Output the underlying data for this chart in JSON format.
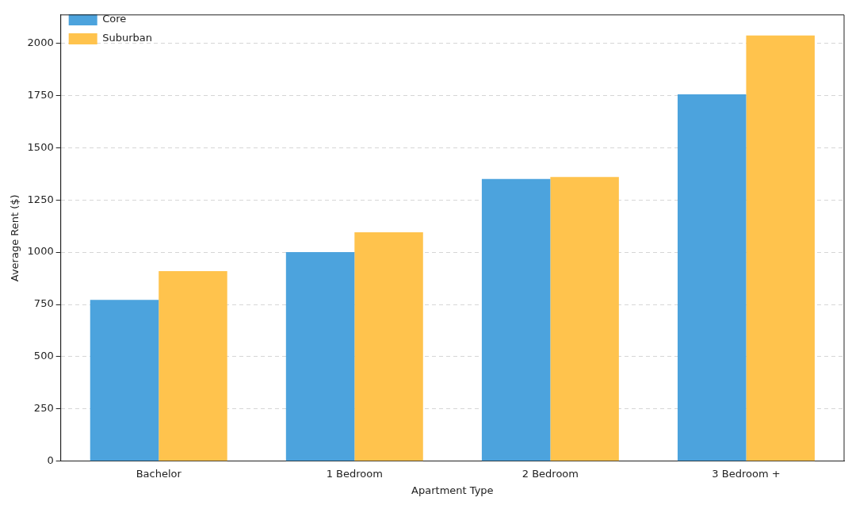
{
  "chart_data": {
    "type": "bar",
    "xlabel": "Apartment Type",
    "ylabel": "Average Rent ($)",
    "categories": [
      "Bachelor",
      "1 Bedroom",
      "2 Bedroom",
      "3 Bedroom +"
    ],
    "series": [
      {
        "name": "Core",
        "color": "#4ca3dd",
        "values": [
          772,
          1000,
          1350,
          1755
        ]
      },
      {
        "name": "Suburban",
        "color": "#ffc34d",
        "values": [
          909,
          1095,
          1360,
          2037
        ]
      }
    ],
    "ylim": [
      0,
      2135
    ],
    "yticks": [
      0,
      250,
      500,
      750,
      1000,
      1250,
      1500,
      1750,
      2000
    ],
    "grid": "y",
    "legend": "top left"
  }
}
